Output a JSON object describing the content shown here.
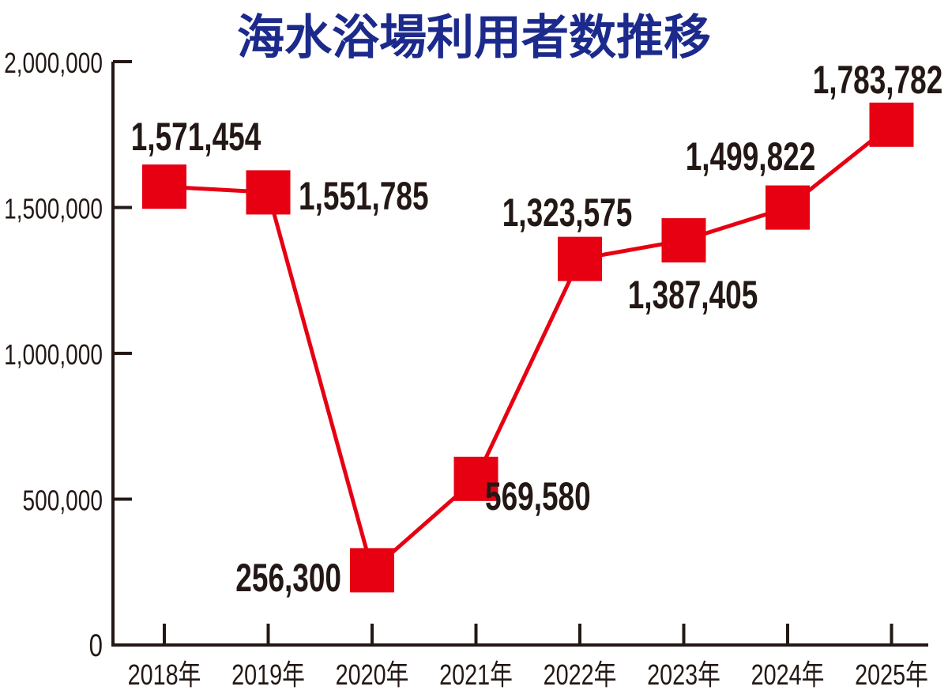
{
  "chart_data": {
    "type": "line",
    "title": "海水浴場利用者数推移",
    "xlabel": "",
    "ylabel": "",
    "categories": [
      "2018年",
      "2019年",
      "2020年",
      "2021年",
      "2022年",
      "2023年",
      "2024年",
      "2025年"
    ],
    "values": [
      1571454,
      1551785,
      256300,
      569580,
      1323575,
      1387405,
      1499822,
      1783782
    ],
    "data_labels": [
      "1,571,454",
      "1,551,785",
      "256,300",
      "569,580",
      "1,323,575",
      "1,387,405",
      "1,499,822",
      "1,783,782"
    ],
    "ylim": [
      0,
      2000000
    ],
    "yticks": [
      0,
      500000,
      1000000,
      1500000,
      2000000
    ],
    "ytick_labels": [
      "0",
      "500,000",
      "1,000,000",
      "1,500,000",
      "2,000,000"
    ],
    "grid": false,
    "legend": "none",
    "marker": "square",
    "colors": {
      "series": "#e60012",
      "title": "#1c2a8c",
      "axis": "#231815"
    }
  }
}
